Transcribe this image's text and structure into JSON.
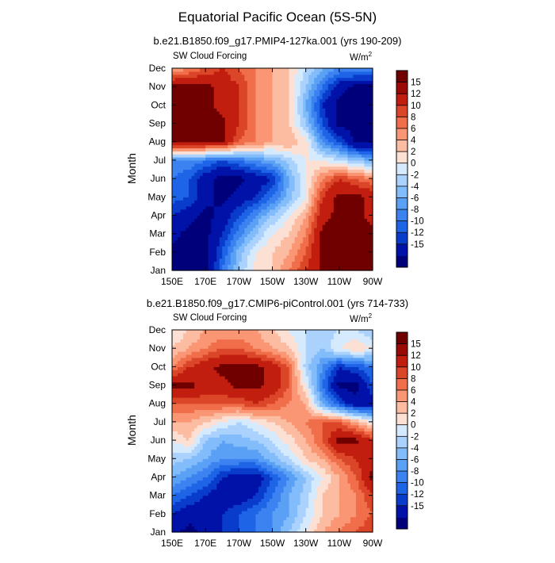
{
  "title": "Equatorial Pacific Ocean (5S-5N)",
  "colors": [
    "#00007a",
    "#0012a8",
    "#0a3ccc",
    "#1e64e6",
    "#3c82f0",
    "#5aa0f5",
    "#82bcfa",
    "#aad2fc",
    "#d6eafe",
    "#fde0d4",
    "#fcbca2",
    "#fa9674",
    "#f06e4a",
    "#dc4628",
    "#c21e10",
    "#9c0a06",
    "#700000"
  ],
  "chart_data": [
    {
      "type": "heatmap",
      "subtitle": "b.e21.B1850.f09_g17.PMIP4-127ka.001 (yrs 190-209)",
      "left_label": "SW Cloud Forcing",
      "right_label_base": "W/m",
      "right_label_sup": "2",
      "ylabel": "Month",
      "months": [
        "Jan",
        "Feb",
        "Mar",
        "Apr",
        "May",
        "Jun",
        "Jul",
        "Aug",
        "Sep",
        "Oct",
        "Nov",
        "Dec"
      ],
      "x_ticks": [
        "150E",
        "170E",
        "170W",
        "150W",
        "130W",
        "110W",
        "90W"
      ],
      "colorbar_labels": [
        "15",
        "12",
        "10",
        "8",
        "6",
        "4",
        "2",
        "0",
        "-2",
        "-4",
        "-6",
        "-8",
        "-10",
        "-12",
        "-15"
      ],
      "grid_lons": [
        150,
        160,
        170,
        180,
        190,
        200,
        210,
        220,
        230,
        240,
        250,
        260,
        270
      ],
      "values": [
        [
          -16,
          -16,
          -16,
          -8,
          -2,
          3,
          4,
          8,
          12,
          16,
          16,
          16,
          16
        ],
        [
          -16,
          -16,
          -16,
          -10,
          -3,
          2,
          4,
          6,
          10,
          16,
          16,
          16,
          16
        ],
        [
          -14,
          -16,
          -16,
          -12,
          -7,
          -2,
          2,
          4,
          8,
          16,
          16,
          16,
          16
        ],
        [
          -12,
          -14,
          -16,
          -14,
          -10,
          -6,
          -2,
          2,
          6,
          14,
          16,
          16,
          14
        ],
        [
          -9,
          -10,
          -14,
          -16,
          -14,
          -12,
          -8,
          -3,
          2,
          12,
          16,
          16,
          14
        ],
        [
          -8,
          -10,
          -14,
          -16,
          -16,
          -14,
          -12,
          -4,
          2,
          8,
          12,
          10,
          8
        ],
        [
          -6,
          -6,
          -8,
          -10,
          -8,
          -6,
          -4,
          -1,
          2,
          2,
          0,
          -2,
          -4
        ],
        [
          16,
          16,
          16,
          16,
          10,
          8,
          6,
          6,
          3,
          -6,
          -10,
          -16,
          -16
        ],
        [
          16,
          16,
          16,
          16,
          12,
          8,
          6,
          4,
          -2,
          -10,
          -16,
          -16,
          -16
        ],
        [
          16,
          16,
          16,
          14,
          12,
          8,
          6,
          4,
          -4,
          -12,
          -16,
          -16,
          -16
        ],
        [
          16,
          16,
          16,
          14,
          12,
          8,
          6,
          4,
          -2,
          -8,
          -14,
          -16,
          -16
        ],
        [
          6,
          8,
          10,
          12,
          10,
          8,
          6,
          4,
          0,
          -4,
          -6,
          -6,
          -6
        ]
      ]
    },
    {
      "type": "heatmap",
      "subtitle": "b.e21.B1850.f09_g17.CMIP6-piControl.001 (yrs 714-733)",
      "left_label": "SW Cloud Forcing",
      "right_label_base": "W/m",
      "right_label_sup": "2",
      "ylabel": "Month",
      "months": [
        "Jan",
        "Feb",
        "Mar",
        "Apr",
        "May",
        "Jun",
        "Jul",
        "Aug",
        "Sep",
        "Oct",
        "Nov",
        "Dec"
      ],
      "x_ticks": [
        "150E",
        "170E",
        "170W",
        "150W",
        "130W",
        "110W",
        "90W"
      ],
      "colorbar_labels": [
        "15",
        "12",
        "10",
        "8",
        "6",
        "4",
        "2",
        "0",
        "-2",
        "-4",
        "-6",
        "-8",
        "-10",
        "-12",
        "-15"
      ],
      "grid_lons": [
        150,
        160,
        170,
        180,
        190,
        200,
        210,
        220,
        230,
        240,
        250,
        260,
        270
      ],
      "values": [
        [
          -14,
          -16,
          -14,
          -12,
          -10,
          -8,
          -6,
          -2,
          2,
          6,
          8,
          10,
          12
        ],
        [
          -12,
          -14,
          -14,
          -12,
          -10,
          -8,
          -6,
          -4,
          0,
          4,
          6,
          8,
          10
        ],
        [
          -8,
          -10,
          -12,
          -14,
          -14,
          -12,
          -8,
          -4,
          -1,
          4,
          6,
          8,
          12
        ],
        [
          -4,
          -6,
          -8,
          -12,
          -14,
          -14,
          -10,
          -6,
          -2,
          2,
          6,
          10,
          16
        ],
        [
          -1,
          -2,
          -4,
          -6,
          -6,
          -6,
          -3,
          0,
          4,
          6,
          10,
          12,
          14
        ],
        [
          2,
          4,
          -2,
          -4,
          -3,
          -2,
          0,
          3,
          6,
          10,
          16,
          16,
          12
        ],
        [
          6,
          6,
          4,
          2,
          0,
          2,
          4,
          6,
          8,
          10,
          10,
          6,
          2
        ],
        [
          10,
          10,
          10,
          10,
          10,
          12,
          10,
          8,
          6,
          -4,
          -10,
          -14,
          -14
        ],
        [
          16,
          16,
          14,
          14,
          16,
          16,
          14,
          10,
          2,
          -8,
          -16,
          -16,
          -10
        ],
        [
          8,
          12,
          14,
          16,
          16,
          16,
          14,
          10,
          -1,
          -6,
          -12,
          -10,
          -8
        ],
        [
          4,
          6,
          8,
          10,
          10,
          8,
          6,
          4,
          0,
          -2,
          2,
          4,
          2
        ],
        [
          2,
          4,
          6,
          6,
          6,
          6,
          4,
          2,
          0,
          -1,
          0,
          0,
          -2
        ]
      ]
    }
  ]
}
